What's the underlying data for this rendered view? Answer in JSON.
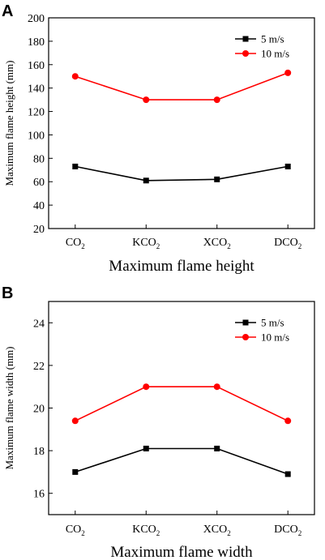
{
  "chart_data": [
    {
      "panel": "A",
      "type": "line",
      "categories": [
        "CO2",
        "KCO2",
        "XCO2",
        "DCO2"
      ],
      "category_labels": [
        {
          "main": "CO",
          "sub": "2"
        },
        {
          "main": "KCO",
          "sub": "2"
        },
        {
          "main": "XCO",
          "sub": "2"
        },
        {
          "main": "DCO",
          "sub": "2"
        }
      ],
      "series": [
        {
          "name": "5 m/s",
          "color": "#000000",
          "marker": "square",
          "values": [
            73,
            61,
            62,
            73
          ]
        },
        {
          "name": "10 m/s",
          "color": "#ff0000",
          "marker": "circle",
          "values": [
            150,
            130,
            130,
            153
          ]
        }
      ],
      "xlabel": "Maximum flame height",
      "ylabel": "Maximum flame height (mm)",
      "ylim": [
        20,
        200
      ],
      "yticks": [
        20,
        40,
        60,
        80,
        100,
        120,
        140,
        160,
        180,
        200
      ],
      "legend": "top-right",
      "grid": false
    },
    {
      "panel": "B",
      "type": "line",
      "categories": [
        "CO2",
        "KCO2",
        "XCO2",
        "DCO2"
      ],
      "category_labels": [
        {
          "main": "CO",
          "sub": "2"
        },
        {
          "main": "KCO",
          "sub": "2"
        },
        {
          "main": "XCO",
          "sub": "2"
        },
        {
          "main": "DCO",
          "sub": "2"
        }
      ],
      "series": [
        {
          "name": "5 m/s",
          "color": "#000000",
          "marker": "square",
          "values": [
            17.0,
            18.1,
            18.1,
            16.9
          ]
        },
        {
          "name": "10 m/s",
          "color": "#ff0000",
          "marker": "circle",
          "values": [
            19.4,
            21.0,
            21.0,
            19.4
          ]
        }
      ],
      "xlabel": "Maximum flame width",
      "ylabel": "Maximum flame width (mm)",
      "ylim": [
        15,
        25
      ],
      "yticks": [
        16,
        18,
        20,
        22,
        24
      ],
      "legend": "top-right",
      "grid": false
    }
  ]
}
